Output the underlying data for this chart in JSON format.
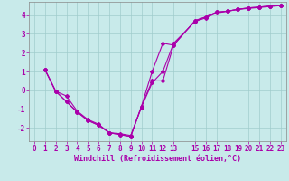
{
  "xlabel": "Windchill (Refroidissement éolien,°C)",
  "bg_color": "#c8eaea",
  "grid_color": "#a0cccc",
  "line_color": "#aa00aa",
  "marker": "D",
  "markersize": 2.0,
  "linewidth": 0.8,
  "xlim": [
    -0.5,
    23.5
  ],
  "ylim": [
    -2.7,
    4.7
  ],
  "yticks": [
    -2,
    -1,
    0,
    1,
    2,
    3,
    4
  ],
  "xticks": [
    0,
    1,
    2,
    3,
    4,
    5,
    6,
    7,
    8,
    9,
    10,
    11,
    12,
    13,
    15,
    16,
    17,
    18,
    19,
    20,
    21,
    22,
    23
  ],
  "tick_fontsize": 5.5,
  "xlabel_fontsize": 6.0,
  "line1_x": [
    1,
    2,
    3,
    4,
    5,
    6,
    7,
    8,
    9,
    10,
    11,
    12,
    13,
    15,
    16,
    17,
    18,
    19,
    20,
    21,
    22,
    23
  ],
  "line1_y": [
    1.1,
    -0.05,
    -0.3,
    -1.1,
    -1.55,
    -1.8,
    -2.25,
    -2.3,
    -2.4,
    -0.9,
    0.4,
    1.0,
    2.5,
    3.65,
    3.85,
    4.1,
    4.2,
    4.3,
    4.35,
    4.4,
    4.45,
    4.5
  ],
  "line2_x": [
    1,
    2,
    3,
    4,
    5,
    6,
    7,
    8,
    9,
    10,
    11,
    12,
    13,
    15,
    16,
    17,
    18,
    19,
    20,
    21,
    22,
    23
  ],
  "line2_y": [
    1.1,
    -0.05,
    -0.6,
    -1.15,
    -1.6,
    -1.85,
    -2.25,
    -2.35,
    -2.45,
    -0.85,
    1.0,
    2.5,
    2.4,
    3.7,
    3.9,
    4.15,
    4.2,
    4.3,
    4.38,
    4.42,
    4.48,
    4.52
  ],
  "line3_x": [
    1,
    2,
    3,
    4,
    5,
    6,
    7,
    8,
    9,
    10,
    11,
    12,
    13,
    15,
    16,
    17,
    18,
    19,
    20,
    21,
    22,
    23
  ],
  "line3_y": [
    1.1,
    -0.05,
    -0.6,
    -1.15,
    -1.6,
    -1.85,
    -2.25,
    -2.35,
    -2.45,
    -0.85,
    0.5,
    0.5,
    2.4,
    3.7,
    3.9,
    4.15,
    4.2,
    4.3,
    4.38,
    4.42,
    4.48,
    4.52
  ]
}
